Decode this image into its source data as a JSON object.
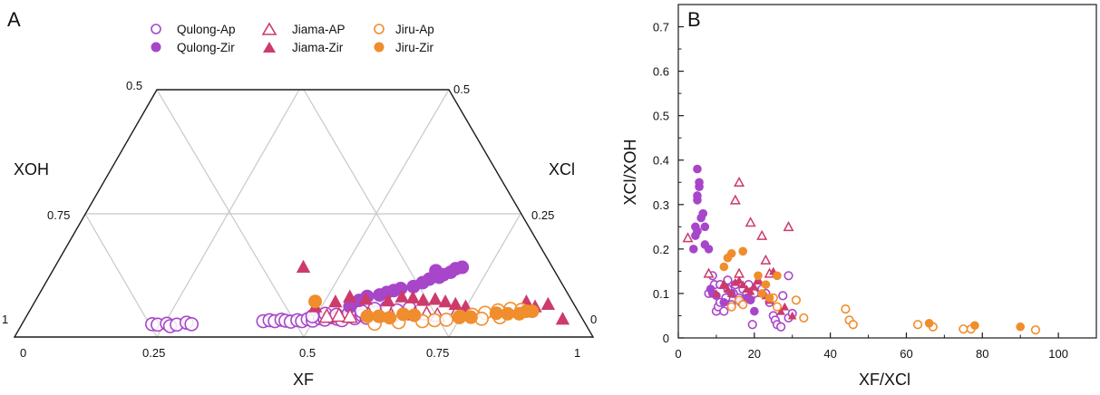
{
  "colors": {
    "qulong": "#a746c9",
    "jiama": "#cc3b6b",
    "jiru": "#f08d2c",
    "grid": "#c8c8c8",
    "axis": "#1a1a1a"
  },
  "chart_data": [
    {
      "panel": "A",
      "type": "scatter",
      "subtype": "ternary",
      "vertex_labels": [
        "XOH",
        "XCl",
        "XF"
      ],
      "left_edge_ticks": [
        "0.5",
        "0.75",
        "1"
      ],
      "right_edge_ticks": [
        "0.5",
        "0.25",
        "0"
      ],
      "bottom_ticks": [
        "0",
        "0.25",
        "0.5",
        "0.75",
        "1"
      ],
      "legend": [
        {
          "name": "Qulong-Ap",
          "group": "qulong",
          "marker": "circle-open"
        },
        {
          "name": "Qulong-Zir",
          "group": "qulong",
          "marker": "circle-filled"
        },
        {
          "name": "Jiama-AP",
          "group": "jiama",
          "marker": "triangle-open"
        },
        {
          "name": "Jiama-Zir",
          "group": "jiama",
          "marker": "triangle-filled"
        },
        {
          "name": "Jiru-Ap",
          "group": "jiru",
          "marker": "circle-open"
        },
        {
          "name": "Jiru-Zir",
          "group": "jiru",
          "marker": "circle-filled"
        }
      ],
      "legend_placement": "top-center",
      "note": "points given as [XF, XCl]",
      "series": [
        {
          "name": "Qulong-Ap",
          "points": [
            [
              0.236,
              0.004
            ],
            [
              0.246,
              0.003
            ],
            [
              0.261,
              0.005
            ],
            [
              0.269,
              0.0
            ],
            [
              0.279,
              0.003
            ],
            [
              0.294,
              0.007
            ],
            [
              0.304,
              0.004
            ],
            [
              0.425,
              0.01
            ],
            [
              0.435,
              0.012
            ],
            [
              0.445,
              0.01
            ],
            [
              0.455,
              0.013
            ],
            [
              0.463,
              0.011
            ],
            [
              0.473,
              0.009
            ],
            [
              0.483,
              0.012
            ],
            [
              0.492,
              0.01
            ],
            [
              0.5,
              0.014
            ],
            [
              0.51,
              0.011
            ],
            [
              0.52,
              0.016
            ],
            [
              0.53,
              0.013
            ],
            [
              0.54,
              0.018
            ],
            [
              0.55,
              0.015
            ],
            [
              0.56,
              0.012
            ],
            [
              0.57,
              0.02
            ],
            [
              0.58,
              0.016
            ],
            [
              0.59,
              0.022
            ],
            [
              0.6,
              0.017
            ],
            [
              0.61,
              0.027
            ],
            [
              0.62,
              0.02
            ],
            [
              0.63,
              0.028
            ],
            [
              0.505,
              0.02
            ],
            [
              0.525,
              0.025
            ],
            [
              0.545,
              0.023
            ],
            [
              0.565,
              0.026
            ],
            [
              0.585,
              0.03
            ],
            [
              0.605,
              0.035
            ],
            [
              0.625,
              0.038
            ],
            [
              0.645,
              0.032
            ],
            [
              0.665,
              0.036
            ]
          ]
        },
        {
          "name": "Qulong-Zir",
          "points": [
            [
              0.56,
              0.04
            ],
            [
              0.57,
              0.052
            ],
            [
              0.58,
              0.06
            ],
            [
              0.6,
              0.063
            ],
            [
              0.61,
              0.068
            ],
            [
              0.62,
              0.072
            ],
            [
              0.63,
              0.076
            ],
            [
              0.65,
              0.08
            ],
            [
              0.662,
              0.088
            ],
            [
              0.67,
              0.095
            ],
            [
              0.685,
              0.099
            ],
            [
              0.69,
              0.104
            ],
            [
              0.7,
              0.109
            ],
            [
              0.673,
              0.112
            ],
            [
              0.705,
              0.116
            ],
            [
              0.715,
              0.119
            ]
          ]
        },
        {
          "name": "Jiama-AP",
          "points": [
            [
              0.53,
              0.02
            ],
            [
              0.55,
              0.022
            ],
            [
              0.57,
              0.02
            ],
            [
              0.6,
              0.024
            ],
            [
              0.64,
              0.022
            ],
            [
              0.68,
              0.025
            ],
            [
              0.7,
              0.025
            ],
            [
              0.72,
              0.022
            ],
            [
              0.75,
              0.03
            ]
          ]
        },
        {
          "name": "Jiama-Zir",
          "points": [
            [
              0.44,
              0.12
            ],
            [
              0.5,
              0.04
            ],
            [
              0.53,
              0.05
            ],
            [
              0.55,
              0.06
            ],
            [
              0.58,
              0.055
            ],
            [
              0.62,
              0.052
            ],
            [
              0.64,
              0.06
            ],
            [
              0.66,
              0.058
            ],
            [
              0.68,
              0.053
            ],
            [
              0.7,
              0.055
            ],
            [
              0.72,
              0.05
            ],
            [
              0.74,
              0.045
            ],
            [
              0.76,
              0.04
            ],
            [
              0.86,
              0.05
            ],
            [
              0.88,
              0.04
            ],
            [
              0.9,
              0.045
            ],
            [
              0.94,
              0.015
            ]
          ]
        },
        {
          "name": "Jiru-Ap",
          "points": [
            [
              0.62,
              0.005
            ],
            [
              0.66,
              0.008
            ],
            [
              0.7,
              0.01
            ],
            [
              0.72,
              0.012
            ],
            [
              0.74,
              0.013
            ],
            [
              0.76,
              0.018
            ],
            [
              0.78,
              0.023
            ],
            [
              0.8,
              0.027
            ],
            [
              0.82,
              0.032
            ],
            [
              0.84,
              0.035
            ],
            [
              0.86,
              0.033
            ],
            [
              0.8,
              0.015
            ],
            [
              0.83,
              0.018
            ]
          ]
        },
        {
          "name": "Jiru-Zir",
          "points": [
            [
              0.495,
              0.05
            ],
            [
              0.6,
              0.02
            ],
            [
              0.62,
              0.02
            ],
            [
              0.64,
              0.017
            ],
            [
              0.66,
              0.024
            ],
            [
              0.68,
              0.022
            ],
            [
              0.76,
              0.02
            ],
            [
              0.78,
              0.018
            ],
            [
              0.82,
              0.026
            ],
            [
              0.84,
              0.025
            ],
            [
              0.86,
              0.025
            ],
            [
              0.88,
              0.03
            ],
            [
              0.87,
              0.03
            ]
          ]
        }
      ]
    },
    {
      "panel": "B",
      "type": "scatter",
      "xlabel": "XF/XCl",
      "ylabel": "XCl/XOH",
      "xlim": [
        0,
        110
      ],
      "ylim": [
        0,
        0.75
      ],
      "xticks": [
        0,
        20,
        40,
        60,
        80,
        100
      ],
      "yticks": [
        0,
        0.1,
        0.2,
        0.3,
        0.4,
        0.5,
        0.6,
        0.7
      ],
      "xtick_labels": [
        "0",
        "20",
        "40",
        "60",
        "80",
        "100"
      ],
      "ytick_labels": [
        "0",
        "0.1",
        "0.2",
        "0.3",
        "0.4",
        "0.5",
        "0.6",
        "0.7"
      ],
      "grid": false,
      "series": [
        {
          "name": "Qulong-Ap",
          "group": "qulong",
          "marker": "circle-open",
          "points": [
            [
              8,
              0.1
            ],
            [
              9,
              0.14
            ],
            [
              9.5,
              0.12
            ],
            [
              10,
              0.06
            ],
            [
              10.5,
              0.07
            ],
            [
              11,
              0.08
            ],
            [
              11,
              0.12
            ],
            [
              12,
              0.06
            ],
            [
              12.5,
              0.09
            ],
            [
              13,
              0.11
            ],
            [
              13,
              0.13
            ],
            [
              14,
              0.075
            ],
            [
              14.5,
              0.1
            ],
            [
              15,
              0.12
            ],
            [
              16,
              0.09
            ],
            [
              16.5,
              0.08
            ],
            [
              17,
              0.11
            ],
            [
              18,
              0.1
            ],
            [
              18.5,
              0.12
            ],
            [
              19,
              0.09
            ],
            [
              19.5,
              0.03
            ],
            [
              20,
              0.1
            ],
            [
              21,
              0.12
            ],
            [
              22,
              0.11
            ],
            [
              23,
              0.1
            ],
            [
              24,
              0.08
            ],
            [
              25,
              0.05
            ],
            [
              25.5,
              0.04
            ],
            [
              26,
              0.03
            ],
            [
              27,
              0.025
            ],
            [
              27.5,
              0.095
            ],
            [
              29,
              0.14
            ],
            [
              29,
              0.045
            ],
            [
              30,
              0.055
            ]
          ]
        },
        {
          "name": "Qulong-Zir",
          "group": "qulong",
          "marker": "circle-filled",
          "points": [
            [
              4,
              0.2
            ],
            [
              4.5,
              0.23
            ],
            [
              4.5,
              0.25
            ],
            [
              5,
              0.24
            ],
            [
              5,
              0.31
            ],
            [
              5,
              0.32
            ],
            [
              5.5,
              0.34
            ],
            [
              5.5,
              0.35
            ],
            [
              5,
              0.38
            ],
            [
              6,
              0.27
            ],
            [
              6.5,
              0.28
            ],
            [
              7,
              0.21
            ],
            [
              7,
              0.25
            ],
            [
              8,
              0.2
            ],
            [
              8.5,
              0.11
            ],
            [
              9,
              0.1
            ],
            [
              10,
              0.095
            ],
            [
              12,
              0.08
            ],
            [
              14,
              0.1
            ],
            [
              16,
              0.085
            ],
            [
              18,
              0.09
            ],
            [
              19,
              0.085
            ],
            [
              20,
              0.06
            ]
          ]
        },
        {
          "name": "Jiama-AP",
          "group": "jiama",
          "marker": "triangle-open",
          "points": [
            [
              2.5,
              0.225
            ],
            [
              8,
              0.145
            ],
            [
              12,
              0.12
            ],
            [
              15,
              0.31
            ],
            [
              16,
              0.35
            ],
            [
              16,
              0.145
            ],
            [
              19,
              0.26
            ],
            [
              21,
              0.13
            ],
            [
              22,
              0.23
            ],
            [
              23,
              0.175
            ],
            [
              24,
              0.145
            ],
            [
              29,
              0.25
            ]
          ]
        },
        {
          "name": "Jiama-Zir",
          "group": "jiama",
          "marker": "triangle-filled",
          "points": [
            [
              10,
              0.1
            ],
            [
              12,
              0.12
            ],
            [
              13,
              0.11
            ],
            [
              14,
              0.1
            ],
            [
              15,
              0.125
            ],
            [
              16,
              0.13
            ],
            [
              17,
              0.12
            ],
            [
              18,
              0.11
            ],
            [
              19,
              0.105
            ],
            [
              20,
              0.115
            ],
            [
              21,
              0.13
            ],
            [
              22,
              0.1
            ],
            [
              23,
              0.095
            ],
            [
              24,
              0.085
            ],
            [
              25,
              0.15
            ],
            [
              27,
              0.06
            ],
            [
              28,
              0.07
            ],
            [
              30,
              0.05
            ]
          ]
        },
        {
          "name": "Jiru-Ap",
          "group": "jiru",
          "marker": "circle-open",
          "points": [
            [
              14,
              0.07
            ],
            [
              16,
              0.085
            ],
            [
              17,
              0.075
            ],
            [
              25,
              0.09
            ],
            [
              26,
              0.07
            ],
            [
              31,
              0.085
            ],
            [
              33,
              0.045
            ],
            [
              44,
              0.065
            ],
            [
              45,
              0.04
            ],
            [
              46,
              0.03
            ],
            [
              63,
              0.03
            ],
            [
              67,
              0.025
            ],
            [
              75,
              0.02
            ],
            [
              77,
              0.02
            ],
            [
              94,
              0.018
            ]
          ]
        },
        {
          "name": "Jiru-Zir",
          "group": "jiru",
          "marker": "circle-filled",
          "points": [
            [
              12,
              0.16
            ],
            [
              13,
              0.18
            ],
            [
              14,
              0.19
            ],
            [
              17,
              0.195
            ],
            [
              21,
              0.14
            ],
            [
              22,
              0.1
            ],
            [
              23,
              0.12
            ],
            [
              24,
              0.09
            ],
            [
              26,
              0.14
            ],
            [
              66,
              0.033
            ],
            [
              78,
              0.028
            ],
            [
              90,
              0.025
            ]
          ]
        }
      ]
    }
  ]
}
